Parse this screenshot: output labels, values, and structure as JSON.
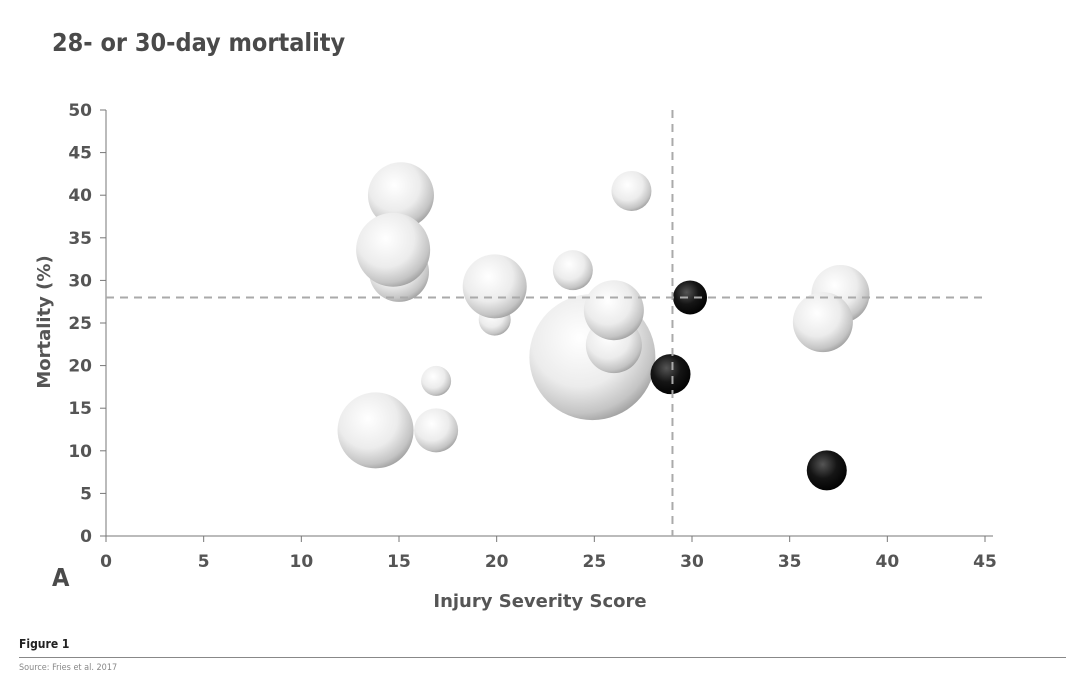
{
  "chart_data": {
    "type": "scatter",
    "subtype": "bubble",
    "title": "28- or 30-day mortality",
    "panel_label": "A",
    "xlabel": "Injury Severity Score",
    "ylabel": "Mortality (%)",
    "xlim": [
      0,
      45
    ],
    "ylim": [
      0,
      50
    ],
    "xticks": [
      0,
      5,
      10,
      15,
      20,
      25,
      30,
      35,
      40,
      45
    ],
    "yticks": [
      0,
      5,
      10,
      15,
      20,
      25,
      30,
      35,
      40,
      45,
      50
    ],
    "grid": false,
    "reference_lines": {
      "x": 29,
      "y": 28
    },
    "colors": {
      "light": "#e8e8e8",
      "dark": "#111111",
      "refline": "#aaaaaa",
      "axis": "#777777"
    },
    "points": [
      {
        "x": 15.1,
        "y": 40.0,
        "size": 33,
        "group": "light"
      },
      {
        "x": 15.0,
        "y": 31.0,
        "size": 30,
        "group": "light"
      },
      {
        "x": 14.7,
        "y": 33.6,
        "size": 37,
        "group": "light"
      },
      {
        "x": 26.9,
        "y": 40.5,
        "size": 20,
        "group": "light"
      },
      {
        "x": 19.9,
        "y": 25.4,
        "size": 16,
        "group": "light"
      },
      {
        "x": 19.9,
        "y": 29.3,
        "size": 32,
        "group": "light"
      },
      {
        "x": 23.9,
        "y": 31.2,
        "size": 20,
        "group": "light"
      },
      {
        "x": 24.9,
        "y": 21.0,
        "size": 63,
        "group": "light"
      },
      {
        "x": 26.0,
        "y": 22.4,
        "size": 28,
        "group": "light"
      },
      {
        "x": 26.0,
        "y": 26.5,
        "size": 30,
        "group": "light"
      },
      {
        "x": 29.9,
        "y": 28.0,
        "size": 17,
        "group": "dark"
      },
      {
        "x": 28.9,
        "y": 19.0,
        "size": 20,
        "group": "dark"
      },
      {
        "x": 36.9,
        "y": 7.7,
        "size": 20,
        "group": "dark"
      },
      {
        "x": 37.6,
        "y": 28.4,
        "size": 29,
        "group": "light"
      },
      {
        "x": 36.7,
        "y": 25.1,
        "size": 30,
        "group": "light"
      },
      {
        "x": 16.9,
        "y": 18.2,
        "size": 15,
        "group": "light"
      },
      {
        "x": 13.8,
        "y": 12.4,
        "size": 38,
        "group": "light"
      },
      {
        "x": 16.9,
        "y": 12.4,
        "size": 22,
        "group": "light"
      }
    ]
  },
  "figure_label": "Figure 1",
  "source": "Source: Fries et al. 2017"
}
